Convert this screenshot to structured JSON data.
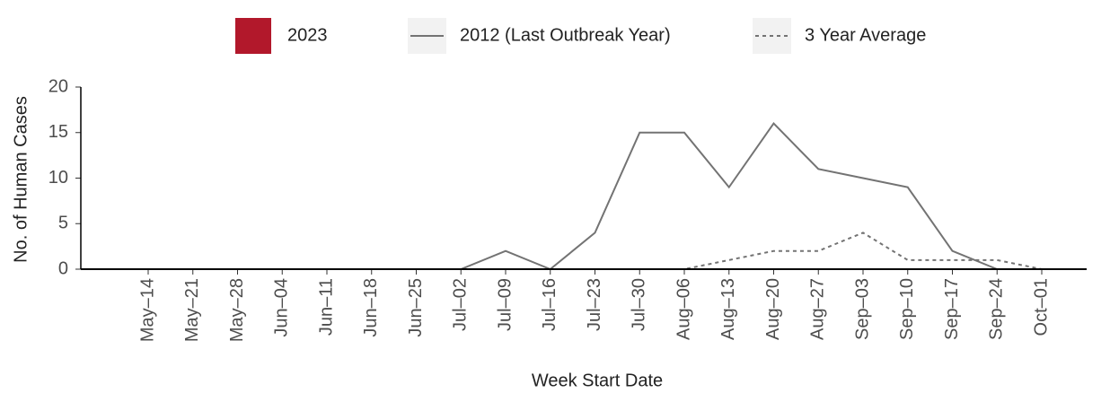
{
  "chart_data": {
    "type": "line",
    "x_label": "Week Start Date",
    "y_label": "No. of Human Cases",
    "categories": [
      "May–14",
      "May–21",
      "May–28",
      "Jun–04",
      "Jun–11",
      "Jun–18",
      "Jun–25",
      "Jul–02",
      "Jul–09",
      "Jul–16",
      "Jul–23",
      "Jul–30",
      "Aug–06",
      "Aug–13",
      "Aug–20",
      "Aug–27",
      "Sep–03",
      "Sep–10",
      "Sep–17",
      "Sep–24",
      "Oct–01"
    ],
    "series": [
      {
        "name": "2023",
        "kind": "bar",
        "color": "#b2182b",
        "values": [
          0,
          0,
          0,
          0,
          0,
          0,
          0,
          0,
          0,
          0,
          0,
          0,
          0,
          0,
          0,
          0,
          0,
          0,
          0,
          0,
          0
        ]
      },
      {
        "name": "2012 (Last Outbreak Year)",
        "kind": "line",
        "color": "#737373",
        "dash": "solid",
        "values": [
          0,
          0,
          0,
          0,
          0,
          0,
          0,
          0,
          2,
          0,
          4,
          15,
          15,
          9,
          16,
          11,
          10,
          9,
          2,
          0,
          null
        ]
      },
      {
        "name": "3 Year Average",
        "kind": "line",
        "color": "#737373",
        "dash": "dashed",
        "values": [
          0,
          0,
          0,
          0,
          0,
          0,
          0,
          0,
          0,
          0,
          0,
          0,
          0,
          1,
          2,
          2,
          4,
          1,
          1,
          1,
          0
        ]
      }
    ],
    "ylim": [
      0,
      20
    ],
    "yticks": [
      0,
      5,
      10,
      15,
      20
    ]
  }
}
